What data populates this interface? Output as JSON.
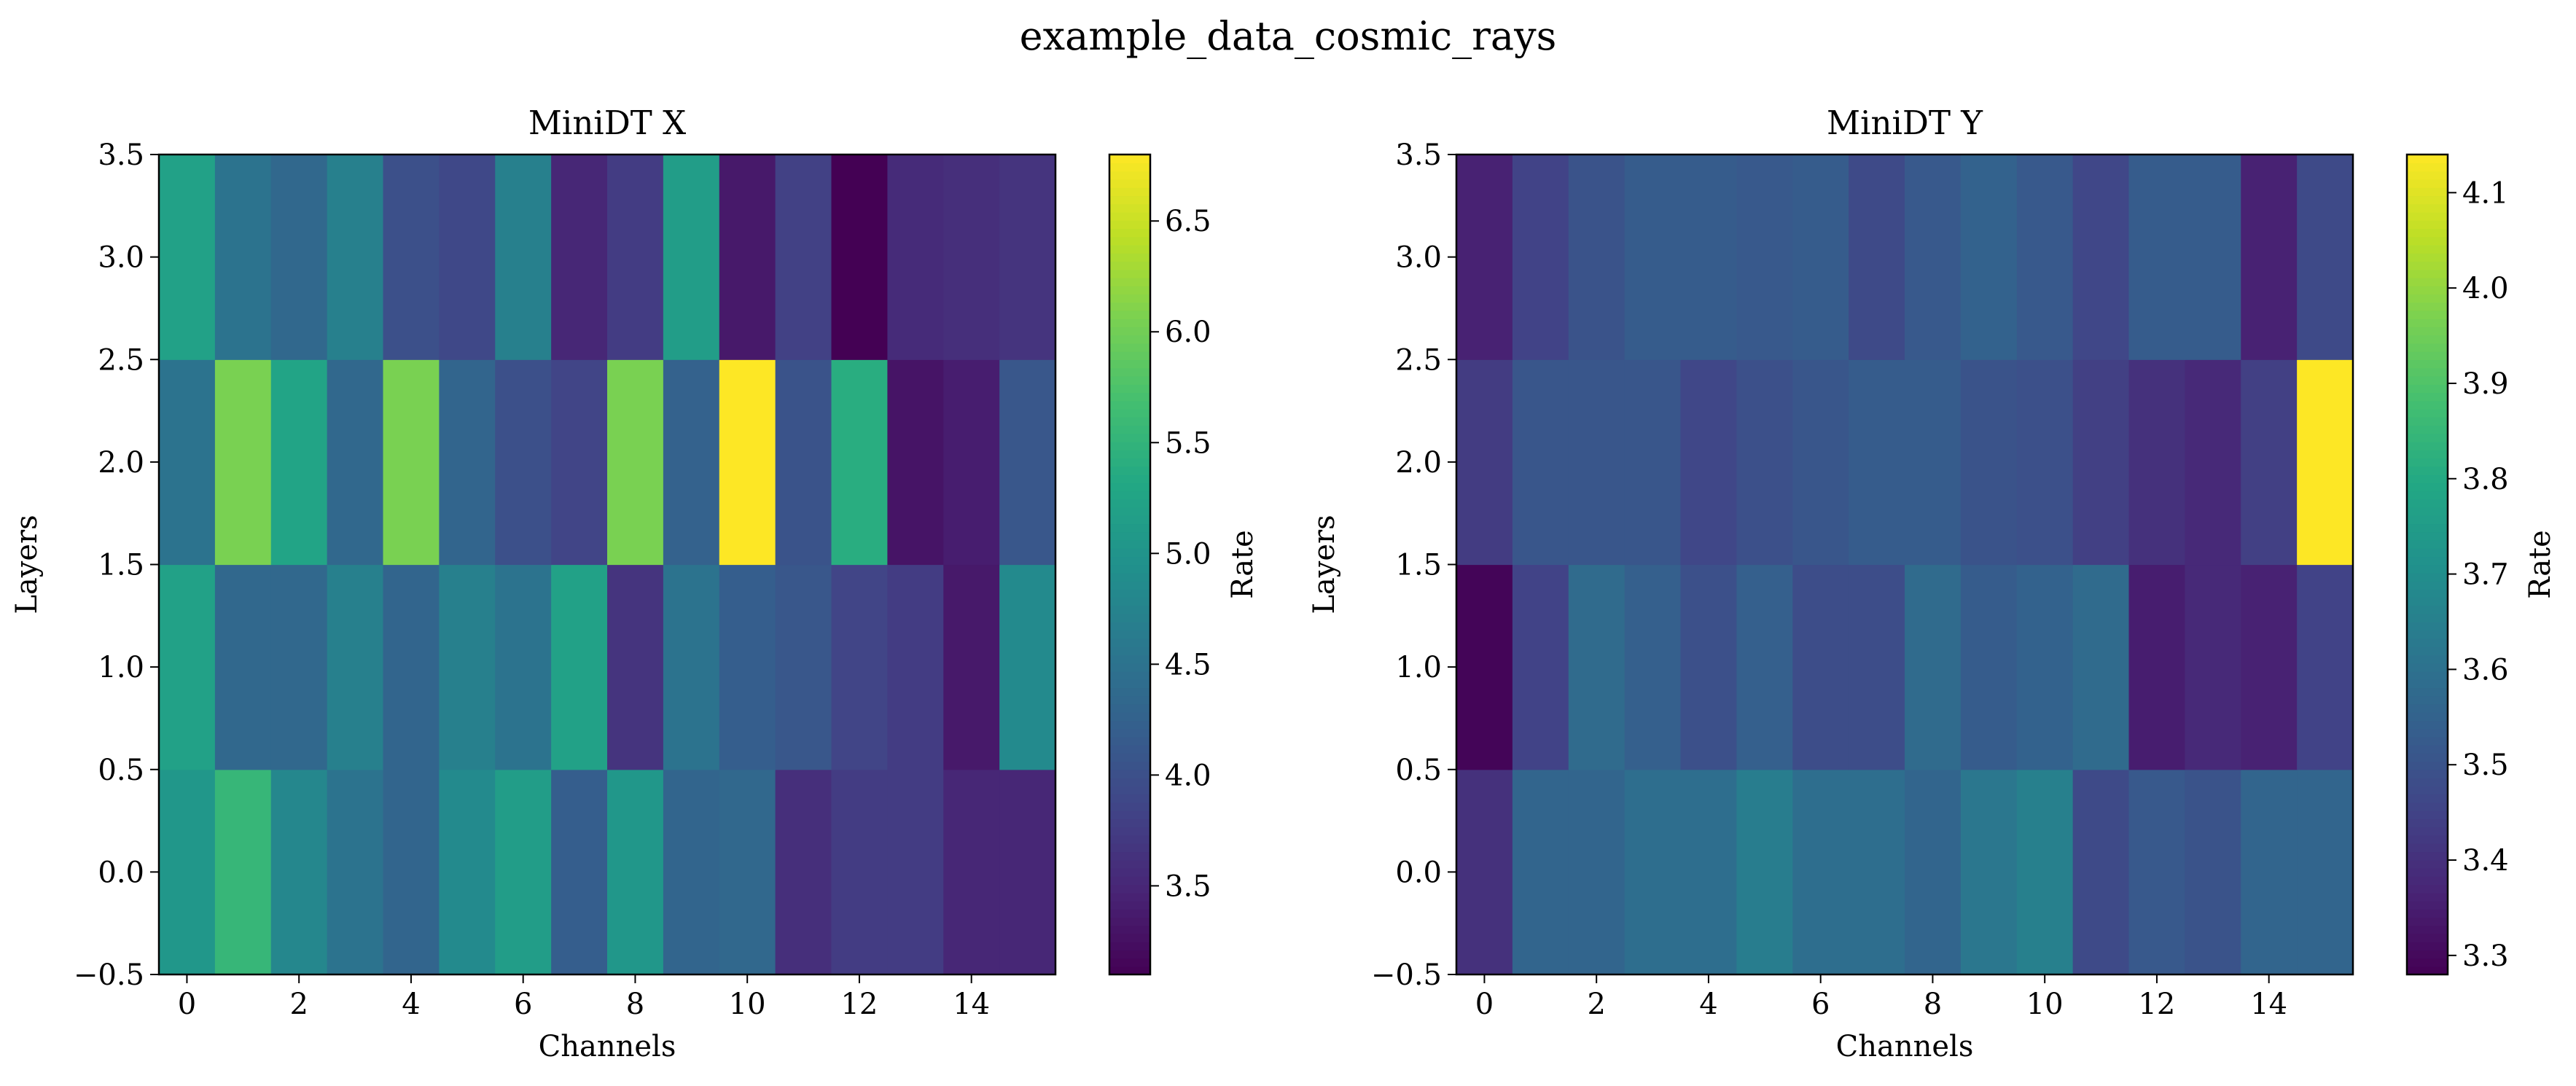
{
  "figure": {
    "suptitle": "example_data_cosmic_rays"
  },
  "chart_data": [
    {
      "type": "heatmap",
      "title": "MiniDT X",
      "xlabel": "Channels",
      "ylabel": "Layers",
      "x_ticks": [
        0,
        2,
        4,
        6,
        8,
        10,
        12,
        14
      ],
      "x_tick_labels": [
        "0",
        "2",
        "4",
        "6",
        "8",
        "10",
        "12",
        "14"
      ],
      "y_ticks": [
        -0.5,
        0.0,
        0.5,
        1.0,
        1.5,
        2.0,
        2.5,
        3.0,
        3.5
      ],
      "y_tick_labels": [
        "−0.5",
        "0.0",
        "0.5",
        "1.0",
        "1.5",
        "2.0",
        "2.5",
        "3.0",
        "3.5"
      ],
      "xlim": [
        -0.5,
        15.5
      ],
      "ylim": [
        -0.5,
        3.5
      ],
      "channels": [
        0,
        1,
        2,
        3,
        4,
        5,
        6,
        7,
        8,
        9,
        10,
        11,
        12,
        13,
        14,
        15
      ],
      "layers": [
        0,
        1,
        2,
        3
      ],
      "values": [
        [
          5.05,
          5.55,
          4.8,
          4.5,
          4.3,
          4.85,
          5.15,
          4.2,
          5.05,
          4.3,
          4.35,
          3.6,
          3.75,
          3.75,
          3.5,
          3.5
        ],
        [
          5.2,
          4.35,
          4.35,
          4.7,
          4.3,
          4.7,
          4.5,
          5.2,
          3.65,
          4.5,
          4.2,
          4.1,
          3.85,
          3.75,
          3.35,
          4.85
        ],
        [
          4.5,
          6.05,
          5.25,
          4.35,
          6.05,
          4.3,
          4.0,
          3.85,
          6.05,
          4.25,
          6.8,
          4.05,
          5.4,
          3.3,
          3.4,
          4.1
        ],
        [
          5.2,
          4.5,
          4.35,
          4.7,
          4.0,
          3.9,
          4.7,
          3.5,
          3.75,
          5.15,
          3.35,
          3.8,
          3.1,
          3.55,
          3.6,
          3.65
        ]
      ],
      "colormap": "viridis",
      "colorbar": {
        "label": "Rate",
        "range": [
          3.1,
          6.8
        ],
        "ticks": [
          3.5,
          4.0,
          4.5,
          5.0,
          5.5,
          6.0,
          6.5
        ],
        "tick_labels": [
          "3.5",
          "4.0",
          "4.5",
          "5.0",
          "5.5",
          "6.0",
          "6.5"
        ]
      }
    },
    {
      "type": "heatmap",
      "title": "MiniDT Y",
      "xlabel": "Channels",
      "ylabel": "Layers",
      "x_ticks": [
        0,
        2,
        4,
        6,
        8,
        10,
        12,
        14
      ],
      "x_tick_labels": [
        "0",
        "2",
        "4",
        "6",
        "8",
        "10",
        "12",
        "14"
      ],
      "y_ticks": [
        -0.5,
        0.0,
        0.5,
        1.0,
        1.5,
        2.0,
        2.5,
        3.0,
        3.5
      ],
      "y_tick_labels": [
        "−0.5",
        "0.0",
        "0.5",
        "1.0",
        "1.5",
        "2.0",
        "2.5",
        "3.0",
        "3.5"
      ],
      "xlim": [
        -0.5,
        15.5
      ],
      "ylim": [
        -0.5,
        3.5
      ],
      "channels": [
        0,
        1,
        2,
        3,
        4,
        5,
        6,
        7,
        8,
        9,
        10,
        11,
        12,
        13,
        14,
        15
      ],
      "layers": [
        0,
        1,
        2,
        3
      ],
      "values": [
        [
          3.4,
          3.56,
          3.56,
          3.59,
          3.59,
          3.64,
          3.59,
          3.59,
          3.56,
          3.62,
          3.65,
          3.47,
          3.52,
          3.5,
          3.56,
          3.56
        ],
        [
          3.29,
          3.45,
          3.58,
          3.54,
          3.49,
          3.54,
          3.48,
          3.48,
          3.58,
          3.53,
          3.55,
          3.58,
          3.35,
          3.38,
          3.36,
          3.45
        ],
        [
          3.43,
          3.51,
          3.51,
          3.51,
          3.46,
          3.49,
          3.51,
          3.53,
          3.53,
          3.5,
          3.49,
          3.44,
          3.4,
          3.38,
          3.44,
          4.14
        ],
        [
          3.36,
          3.45,
          3.5,
          3.53,
          3.53,
          3.52,
          3.53,
          3.47,
          3.52,
          3.55,
          3.52,
          3.46,
          3.53,
          3.53,
          3.36,
          3.47
        ]
      ],
      "colormap": "viridis",
      "colorbar": {
        "label": "Rate",
        "range": [
          3.28,
          4.14
        ],
        "ticks": [
          3.3,
          3.4,
          3.5,
          3.6,
          3.7,
          3.8,
          3.9,
          4.0,
          4.1
        ],
        "tick_labels": [
          "3.3",
          "3.4",
          "3.5",
          "3.6",
          "3.7",
          "3.8",
          "3.9",
          "4.0",
          "4.1"
        ]
      }
    }
  ]
}
